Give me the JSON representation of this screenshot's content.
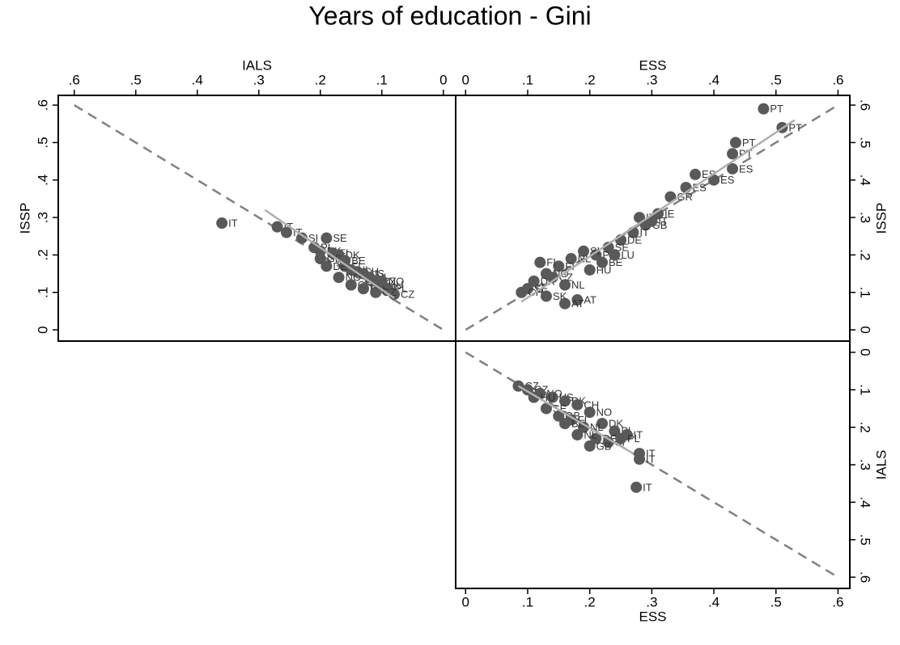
{
  "title": "Years of education - Gini",
  "chart_data": [
    {
      "type": "scatter",
      "x_label": "IALS",
      "y_label": "ISSP",
      "xaxis": "top",
      "yaxis": "left",
      "color": "#595959",
      "xlim": [
        0.626,
        -0.02
      ],
      "ylim": [
        -0.03,
        0.626
      ],
      "xticks": [
        {
          "value": 0.6,
          "label": ".6"
        },
        {
          "value": 0.5,
          "label": ".5"
        },
        {
          "value": 0.4,
          "label": ".4"
        },
        {
          "value": 0.3,
          "label": ".3"
        },
        {
          "value": 0.2,
          "label": ".2"
        },
        {
          "value": 0.1,
          "label": ".1"
        },
        0
      ],
      "yticks": [
        0,
        {
          "value": 0.1,
          "label": ".1"
        },
        {
          "value": 0.2,
          "label": ".2"
        },
        {
          "value": 0.3,
          "label": ".3"
        },
        {
          "value": 0.4,
          "label": ".4"
        },
        {
          "value": 0.5,
          "label": ".5"
        },
        {
          "value": 0.6,
          "label": ".6"
        }
      ],
      "reference_line": {
        "x": [
          0.6,
          0
        ],
        "y": [
          0.6,
          0
        ]
      },
      "fit_line": {
        "x": [
          0.29,
          0.08
        ],
        "y": [
          0.32,
          0.085
        ]
      },
      "x": [
        0.36,
        0.27,
        0.255,
        0.19,
        0.23,
        0.21,
        0.2,
        0.18,
        0.17,
        0.16,
        0.15,
        0.14,
        0.13,
        0.12,
        0.11,
        0.1,
        0.09,
        0.08,
        0.19,
        0.17,
        0.15,
        0.13,
        0.11,
        0.1,
        0.2,
        0.16
      ],
      "values": [
        0.285,
        0.275,
        0.26,
        0.245,
        0.245,
        0.22,
        0.21,
        0.205,
        0.2,
        0.17,
        0.16,
        0.155,
        0.15,
        0.14,
        0.13,
        0.12,
        0.11,
        0.095,
        0.17,
        0.14,
        0.12,
        0.11,
        0.1,
        0.13,
        0.19,
        0.185
      ],
      "labels": [
        "IT",
        "IT",
        "IT",
        "SE",
        "SI",
        "PL",
        "DK",
        "FI",
        "DK",
        "FI",
        "NL",
        "CH",
        "US",
        "NL",
        "CZ",
        "HU",
        "PL",
        "CZ",
        "DE",
        "NO",
        "CH",
        "HU",
        "CZ",
        "NO",
        "GB",
        "BE"
      ]
    },
    {
      "type": "scatter",
      "x_label": "ESS",
      "y_label": "ISSP",
      "xaxis": "top",
      "yaxis": "right",
      "color": "#595959",
      "xlim": [
        -0.016,
        0.619
      ],
      "ylim": [
        -0.03,
        0.626
      ],
      "xticks": [
        0,
        {
          "value": 0.1,
          "label": ".1"
        },
        {
          "value": 0.2,
          "label": ".2"
        },
        {
          "value": 0.3,
          "label": ".3"
        },
        {
          "value": 0.4,
          "label": ".4"
        },
        {
          "value": 0.5,
          "label": ".5"
        },
        {
          "value": 0.6,
          "label": ".6"
        }
      ],
      "yticks": [
        0,
        {
          "value": 0.1,
          "label": ".1"
        },
        {
          "value": 0.2,
          "label": ".2"
        },
        {
          "value": 0.3,
          "label": ".3"
        },
        {
          "value": 0.4,
          "label": ".4"
        },
        {
          "value": 0.5,
          "label": ".5"
        },
        {
          "value": 0.6,
          "label": ".6"
        }
      ],
      "reference_line": {
        "x": [
          0,
          0.6
        ],
        "y": [
          0,
          0.6
        ]
      },
      "fit_line": {
        "x": [
          0.09,
          0.53
        ],
        "y": [
          0.075,
          0.56
        ]
      },
      "x": [
        0.48,
        0.51,
        0.435,
        0.43,
        0.37,
        0.4,
        0.43,
        0.355,
        0.33,
        0.31,
        0.29,
        0.27,
        0.25,
        0.23,
        0.21,
        0.19,
        0.17,
        0.15,
        0.13,
        0.11,
        0.1,
        0.09,
        0.12,
        0.14,
        0.16,
        0.18,
        0.2,
        0.22,
        0.24,
        0.16,
        0.13,
        0.28,
        0.3
      ],
      "values": [
        0.59,
        0.54,
        0.5,
        0.47,
        0.415,
        0.4,
        0.43,
        0.38,
        0.355,
        0.31,
        0.28,
        0.26,
        0.24,
        0.22,
        0.2,
        0.21,
        0.19,
        0.17,
        0.15,
        0.13,
        0.11,
        0.1,
        0.18,
        0.14,
        0.12,
        0.08,
        0.16,
        0.18,
        0.2,
        0.07,
        0.09,
        0.3,
        0.29
      ],
      "labels": [
        "PT",
        "PT",
        "PT",
        "PT",
        "ES",
        "ES",
        "ES",
        "ES",
        "GR",
        "IE",
        "GB",
        "IT",
        "DE",
        "SE",
        "PL",
        "SI",
        "NL",
        "FI",
        "NO",
        "DK",
        "SE",
        "CH",
        "FI",
        "CZ",
        "NL",
        "AT",
        "HU",
        "BE",
        "LU",
        "AT",
        "SK",
        "IT",
        "IT"
      ]
    },
    {
      "type": "scatter",
      "x_label": "ESS",
      "y_label": "IALS",
      "xaxis": "bottom",
      "yaxis": "right",
      "color": "#595959",
      "xlim": [
        -0.016,
        0.619
      ],
      "ylim": [
        0.63,
        -0.03
      ],
      "xticks": [
        0,
        {
          "value": 0.1,
          "label": ".1"
        },
        {
          "value": 0.2,
          "label": ".2"
        },
        {
          "value": 0.3,
          "label": ".3"
        },
        {
          "value": 0.4,
          "label": ".4"
        },
        {
          "value": 0.5,
          "label": ".5"
        },
        {
          "value": 0.6,
          "label": ".6"
        }
      ],
      "yticks": [
        0,
        {
          "value": 0.1,
          "label": ".1"
        },
        {
          "value": 0.2,
          "label": ".2"
        },
        {
          "value": 0.3,
          "label": ".3"
        },
        {
          "value": 0.4,
          "label": ".4"
        },
        {
          "value": 0.5,
          "label": ".5"
        },
        {
          "value": 0.6,
          "label": ".6"
        }
      ],
      "reference_line": {
        "x": [
          0,
          0.6
        ],
        "y": [
          0,
          0.6
        ]
      },
      "fit_line": {
        "x": [
          0.085,
          0.27
        ],
        "y": [
          0.09,
          0.27
        ]
      },
      "x": [
        0.085,
        0.1,
        0.12,
        0.14,
        0.16,
        0.18,
        0.2,
        0.22,
        0.24,
        0.26,
        0.28,
        0.28,
        0.275,
        0.13,
        0.15,
        0.17,
        0.19,
        0.21,
        0.23,
        0.25,
        0.11,
        0.16,
        0.18,
        0.2
      ],
      "values": [
        0.09,
        0.1,
        0.11,
        0.12,
        0.13,
        0.14,
        0.16,
        0.19,
        0.21,
        0.22,
        0.27,
        0.285,
        0.36,
        0.15,
        0.17,
        0.18,
        0.2,
        0.23,
        0.24,
        0.23,
        0.12,
        0.19,
        0.22,
        0.25
      ],
      "labels": [
        "CZ",
        "CZ",
        "NO",
        "US",
        "DK",
        "CH",
        "NO",
        "DK",
        "PL",
        "IT",
        "IT",
        "IT",
        "IT",
        "SE",
        "GB",
        "FI",
        "NL",
        "DE",
        "SI",
        "PL",
        "HU",
        "BE",
        "NL",
        "GB"
      ]
    }
  ]
}
